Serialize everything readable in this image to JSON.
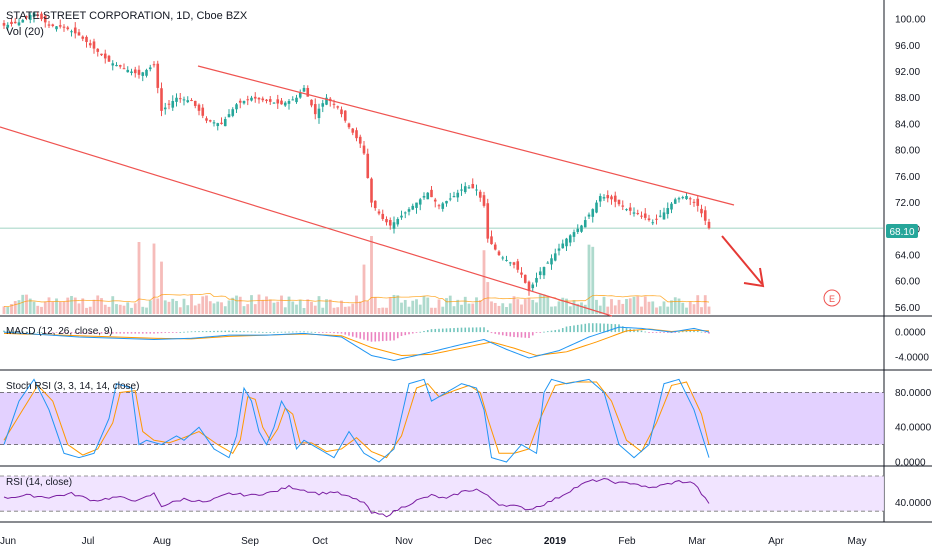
{
  "header": {
    "title": "STATE STREET CORPORATION, 1D, Cboe BZX",
    "volume_label": "Vol (20)"
  },
  "price_badge": "68.10",
  "earnings_marker": "E",
  "colors": {
    "up": "#26a69a",
    "down": "#ef5350",
    "trend": "#ef5350",
    "macd": "#2196f3",
    "signal": "#ff9800",
    "rsi": "#7b1fa2",
    "band": "#e9d7ff",
    "price_line": "#4caf8f",
    "badge": "#26a69a"
  },
  "chart_data": [
    {
      "name": "price",
      "type": "candlestick",
      "title": "STATE STREET CORPORATION, 1D, Cboe BZX",
      "x_ticks": [
        "Jun",
        "Jul",
        "Aug",
        "Sep",
        "Oct",
        "Nov",
        "Dec",
        "2019",
        "Feb",
        "Mar",
        "Apr",
        "May"
      ],
      "y_ticks": [
        "56.00",
        "60.00",
        "64.00",
        "68.00",
        "72.00",
        "76.00",
        "80.00",
        "84.00",
        "88.00",
        "92.00",
        "96.00",
        "100.00"
      ],
      "ylim": [
        55,
        102
      ],
      "last_price": 68.1,
      "anchors": [
        [
          0,
          99.0
        ],
        [
          4,
          99.5
        ],
        [
          8,
          101.0
        ],
        [
          12,
          99.0
        ],
        [
          16,
          98.8
        ],
        [
          20,
          97.5
        ],
        [
          24,
          95.5
        ],
        [
          28,
          93.5
        ],
        [
          32,
          92.5
        ],
        [
          36,
          91.5
        ],
        [
          40,
          93.0
        ],
        [
          42,
          86.0
        ],
        [
          46,
          88.0
        ],
        [
          50,
          87.5
        ],
        [
          54,
          84.5
        ],
        [
          58,
          84.0
        ],
        [
          62,
          87.0
        ],
        [
          66,
          88.0
        ],
        [
          70,
          87.5
        ],
        [
          74,
          87.0
        ],
        [
          78,
          88.0
        ],
        [
          80,
          89.5
        ],
        [
          83,
          85.5
        ],
        [
          86,
          88.0
        ],
        [
          89,
          86.5
        ],
        [
          92,
          83.5
        ],
        [
          95,
          81.0
        ],
        [
          96,
          79.5
        ],
        [
          98,
          72.0
        ],
        [
          101,
          69.5
        ],
        [
          103,
          68.5
        ],
        [
          106,
          70.0
        ],
        [
          110,
          72.0
        ],
        [
          113,
          73.5
        ],
        [
          116,
          71.5
        ],
        [
          120,
          73.0
        ],
        [
          123,
          74.5
        ],
        [
          126,
          74.0
        ],
        [
          128,
          71.5
        ],
        [
          129,
          66.5
        ],
        [
          132,
          64.0
        ],
        [
          136,
          62.5
        ],
        [
          138,
          61.0
        ],
        [
          140,
          58.5
        ],
        [
          143,
          61.5
        ],
        [
          146,
          63.5
        ],
        [
          150,
          66.5
        ],
        [
          154,
          68.5
        ],
        [
          157,
          71.0
        ],
        [
          159,
          73.0
        ],
        [
          162,
          72.5
        ],
        [
          166,
          71.0
        ],
        [
          170,
          70.0
        ],
        [
          173,
          69.0
        ],
        [
          176,
          70.5
        ],
        [
          179,
          72.5
        ],
        [
          182,
          73.0
        ],
        [
          185,
          71.5
        ],
        [
          188,
          68.1
        ]
      ],
      "n_days": 189
    },
    {
      "name": "volume",
      "type": "bar",
      "title": "Vol (20)"
    },
    {
      "name": "macd",
      "type": "line",
      "title": "MACD (12, 26, close, 9)",
      "y_ticks": [
        "0.0000",
        "-4.0000"
      ],
      "ylim": [
        -5.5,
        1.8
      ],
      "series": [
        {
          "name": "MACD",
          "anchors": [
            [
              0,
              0.0
            ],
            [
              20,
              -0.8
            ],
            [
              40,
              -1.2
            ],
            [
              50,
              -1.0
            ],
            [
              60,
              -0.5
            ],
            [
              70,
              -0.5
            ],
            [
              80,
              -0.2
            ],
            [
              90,
              -0.8
            ],
            [
              98,
              -3.8
            ],
            [
              104,
              -4.6
            ],
            [
              112,
              -3.5
            ],
            [
              122,
              -2.0
            ],
            [
              128,
              -1.2
            ],
            [
              134,
              -2.8
            ],
            [
              140,
              -4.2
            ],
            [
              148,
              -3.0
            ],
            [
              156,
              -0.8
            ],
            [
              164,
              0.8
            ],
            [
              170,
              0.6
            ],
            [
              178,
              0.0
            ],
            [
              184,
              0.6
            ],
            [
              188,
              0.0
            ]
          ]
        },
        {
          "name": "Signal",
          "anchors": [
            [
              0,
              -0.2
            ],
            [
              20,
              -0.6
            ],
            [
              40,
              -1.0
            ],
            [
              50,
              -1.1
            ],
            [
              60,
              -0.7
            ],
            [
              70,
              -0.5
            ],
            [
              80,
              -0.3
            ],
            [
              90,
              -0.6
            ],
            [
              98,
              -2.5
            ],
            [
              106,
              -3.8
            ],
            [
              114,
              -3.6
            ],
            [
              122,
              -2.6
            ],
            [
              130,
              -1.6
            ],
            [
              136,
              -2.6
            ],
            [
              142,
              -3.8
            ],
            [
              150,
              -3.2
            ],
            [
              158,
              -1.6
            ],
            [
              166,
              0.2
            ],
            [
              172,
              0.5
            ],
            [
              178,
              0.1
            ],
            [
              184,
              0.3
            ],
            [
              188,
              0.2
            ]
          ]
        }
      ]
    },
    {
      "name": "stoch_rsi",
      "type": "line",
      "title": "Stoch RSI (3, 3, 14, 14, close)",
      "y_ticks": [
        "80.0000",
        "40.0000",
        "0.0000"
      ],
      "ylim": [
        0,
        100
      ],
      "bands": [
        20,
        80
      ],
      "series": [
        {
          "name": "K",
          "anchors": [
            [
              0,
              20
            ],
            [
              4,
              70
            ],
            [
              8,
              95
            ],
            [
              12,
              60
            ],
            [
              16,
              10
            ],
            [
              20,
              5
            ],
            [
              24,
              10
            ],
            [
              28,
              50
            ],
            [
              30,
              90
            ],
            [
              34,
              85
            ],
            [
              36,
              20
            ],
            [
              38,
              25
            ],
            [
              42,
              20
            ],
            [
              46,
              30
            ],
            [
              48,
              25
            ],
            [
              52,
              40
            ],
            [
              56,
              15
            ],
            [
              60,
              5
            ],
            [
              62,
              30
            ],
            [
              64,
              85
            ],
            [
              66,
              70
            ],
            [
              68,
              35
            ],
            [
              70,
              20
            ],
            [
              72,
              40
            ],
            [
              74,
              70
            ],
            [
              76,
              55
            ],
            [
              78,
              15
            ],
            [
              80,
              25
            ],
            [
              84,
              15
            ],
            [
              88,
              5
            ],
            [
              92,
              35
            ],
            [
              96,
              10
            ],
            [
              100,
              0
            ],
            [
              104,
              15
            ],
            [
              108,
              90
            ],
            [
              112,
              95
            ],
            [
              114,
              70
            ],
            [
              118,
              80
            ],
            [
              122,
              90
            ],
            [
              126,
              85
            ],
            [
              128,
              60
            ],
            [
              130,
              5
            ],
            [
              134,
              0
            ],
            [
              138,
              20
            ],
            [
              142,
              10
            ],
            [
              144,
              80
            ],
            [
              146,
              95
            ],
            [
              150,
              90
            ],
            [
              156,
              95
            ],
            [
              160,
              80
            ],
            [
              164,
              20
            ],
            [
              168,
              5
            ],
            [
              172,
              20
            ],
            [
              176,
              90
            ],
            [
              180,
              95
            ],
            [
              184,
              60
            ],
            [
              188,
              5
            ]
          ]
        },
        {
          "name": "D",
          "anchors": [
            [
              0,
              25
            ],
            [
              5,
              60
            ],
            [
              9,
              88
            ],
            [
              13,
              70
            ],
            [
              17,
              20
            ],
            [
              21,
              8
            ],
            [
              25,
              15
            ],
            [
              29,
              45
            ],
            [
              31,
              80
            ],
            [
              35,
              82
            ],
            [
              37,
              35
            ],
            [
              40,
              25
            ],
            [
              44,
              22
            ],
            [
              48,
              28
            ],
            [
              52,
              35
            ],
            [
              57,
              20
            ],
            [
              61,
              10
            ],
            [
              63,
              25
            ],
            [
              65,
              75
            ],
            [
              67,
              72
            ],
            [
              69,
              40
            ],
            [
              71,
              25
            ],
            [
              73,
              38
            ],
            [
              75,
              62
            ],
            [
              77,
              55
            ],
            [
              79,
              22
            ],
            [
              82,
              22
            ],
            [
              86,
              12
            ],
            [
              90,
              15
            ],
            [
              94,
              28
            ],
            [
              98,
              12
            ],
            [
              102,
              5
            ],
            [
              106,
              30
            ],
            [
              110,
              85
            ],
            [
              113,
              90
            ],
            [
              116,
              75
            ],
            [
              120,
              82
            ],
            [
              124,
              88
            ],
            [
              127,
              80
            ],
            [
              129,
              50
            ],
            [
              132,
              10
            ],
            [
              136,
              10
            ],
            [
              140,
              15
            ],
            [
              143,
              50
            ],
            [
              147,
              88
            ],
            [
              152,
              92
            ],
            [
              158,
              92
            ],
            [
              162,
              70
            ],
            [
              166,
              25
            ],
            [
              170,
              12
            ],
            [
              174,
              45
            ],
            [
              178,
              88
            ],
            [
              182,
              92
            ],
            [
              186,
              55
            ],
            [
              188,
              20
            ]
          ]
        }
      ]
    },
    {
      "name": "rsi",
      "type": "line",
      "title": "RSI (14, close)",
      "y_ticks": [
        "40.0000"
      ],
      "ylim": [
        20,
        78
      ],
      "bands": [
        30,
        70
      ],
      "series": [
        {
          "name": "RSI",
          "anchors": [
            [
              0,
              45
            ],
            [
              6,
              48
            ],
            [
              12,
              46
            ],
            [
              18,
              50
            ],
            [
              24,
              42
            ],
            [
              30,
              46
            ],
            [
              36,
              42
            ],
            [
              40,
              50
            ],
            [
              42,
              36
            ],
            [
              48,
              44
            ],
            [
              54,
              40
            ],
            [
              60,
              50
            ],
            [
              66,
              48
            ],
            [
              72,
              52
            ],
            [
              76,
              58
            ],
            [
              80,
              54
            ],
            [
              84,
              50
            ],
            [
              88,
              52
            ],
            [
              92,
              46
            ],
            [
              96,
              40
            ],
            [
              98,
              28
            ],
            [
              102,
              25
            ],
            [
              106,
              34
            ],
            [
              110,
              42
            ],
            [
              114,
              48
            ],
            [
              118,
              44
            ],
            [
              122,
              52
            ],
            [
              126,
              55
            ],
            [
              128,
              50
            ],
            [
              132,
              38
            ],
            [
              136,
              36
            ],
            [
              140,
              32
            ],
            [
              144,
              38
            ],
            [
              148,
              46
            ],
            [
              152,
              56
            ],
            [
              156,
              64
            ],
            [
              160,
              66
            ],
            [
              164,
              62
            ],
            [
              168,
              62
            ],
            [
              172,
              56
            ],
            [
              176,
              60
            ],
            [
              180,
              64
            ],
            [
              184,
              62
            ],
            [
              186,
              50
            ],
            [
              188,
              38
            ]
          ]
        }
      ]
    }
  ]
}
